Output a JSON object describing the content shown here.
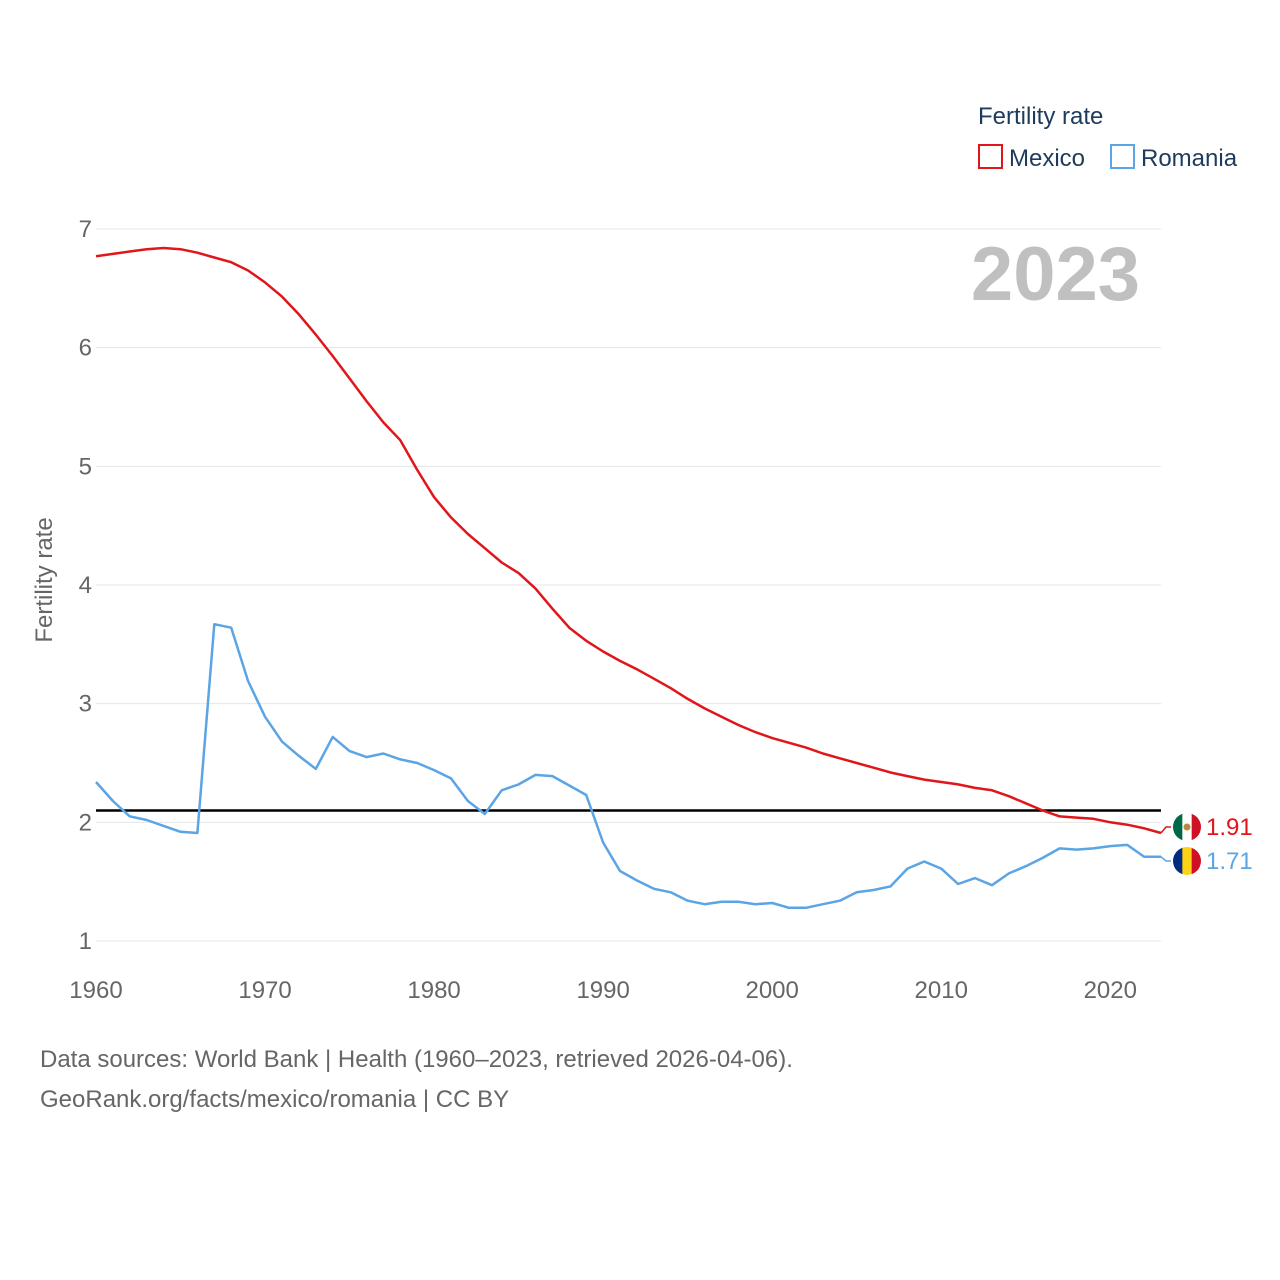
{
  "chart_data": {
    "type": "line",
    "ylabel": "Fertility rate",
    "xlabel": "",
    "year_display": "2023",
    "xlim": [
      1960,
      2023
    ],
    "ylim": [
      1,
      7
    ],
    "yticks": [
      1,
      2,
      3,
      4,
      5,
      6,
      7
    ],
    "xticks": [
      1960,
      1970,
      1980,
      1990,
      2000,
      2010,
      2020
    ],
    "reference_line": 2.1,
    "legend": {
      "title": "Fertility rate",
      "position": "top-right"
    },
    "x": [
      1960,
      1961,
      1962,
      1963,
      1964,
      1965,
      1966,
      1967,
      1968,
      1969,
      1970,
      1971,
      1972,
      1973,
      1974,
      1975,
      1976,
      1977,
      1978,
      1979,
      1980,
      1981,
      1982,
      1983,
      1984,
      1985,
      1986,
      1987,
      1988,
      1989,
      1990,
      1991,
      1992,
      1993,
      1994,
      1995,
      1996,
      1997,
      1998,
      1999,
      2000,
      2001,
      2002,
      2003,
      2004,
      2005,
      2006,
      2007,
      2008,
      2009,
      2010,
      2011,
      2012,
      2013,
      2014,
      2015,
      2016,
      2017,
      2018,
      2019,
      2020,
      2021,
      2022,
      2023
    ],
    "series": [
      {
        "name": "Mexico",
        "color": "#e0161b",
        "end_label": "1.91",
        "flag": "mexico-flag",
        "values": [
          6.77,
          6.79,
          6.81,
          6.83,
          6.84,
          6.83,
          6.8,
          6.76,
          6.72,
          6.65,
          6.55,
          6.43,
          6.28,
          6.11,
          5.93,
          5.74,
          5.55,
          5.37,
          5.22,
          4.97,
          4.74,
          4.57,
          4.43,
          4.31,
          4.19,
          4.1,
          3.97,
          3.8,
          3.64,
          3.53,
          3.44,
          3.36,
          3.29,
          3.21,
          3.13,
          3.04,
          2.96,
          2.89,
          2.82,
          2.76,
          2.71,
          2.67,
          2.63,
          2.58,
          2.54,
          2.5,
          2.46,
          2.42,
          2.39,
          2.36,
          2.34,
          2.32,
          2.29,
          2.27,
          2.22,
          2.16,
          2.1,
          2.05,
          2.04,
          2.03,
          2.0,
          1.98,
          1.95,
          1.91
        ]
      },
      {
        "name": "Romania",
        "color": "#5ba4e5",
        "end_label": "1.71",
        "flag": "romania-flag",
        "values": [
          2.34,
          2.18,
          2.05,
          2.02,
          1.97,
          1.92,
          1.91,
          3.67,
          3.64,
          3.19,
          2.89,
          2.68,
          2.56,
          2.45,
          2.72,
          2.6,
          2.55,
          2.58,
          2.53,
          2.5,
          2.44,
          2.37,
          2.18,
          2.07,
          2.27,
          2.32,
          2.4,
          2.39,
          2.31,
          2.23,
          1.83,
          1.59,
          1.51,
          1.44,
          1.41,
          1.34,
          1.31,
          1.33,
          1.33,
          1.31,
          1.32,
          1.28,
          1.28,
          1.31,
          1.34,
          1.41,
          1.43,
          1.46,
          1.61,
          1.67,
          1.61,
          1.48,
          1.53,
          1.47,
          1.57,
          1.63,
          1.7,
          1.78,
          1.77,
          1.78,
          1.8,
          1.81,
          1.71,
          1.71
        ]
      }
    ]
  },
  "source": {
    "line1": "Data sources: World Bank | Health (1960–2023, retrieved 2026-04-06).",
    "line2": "GeoRank.org/facts/mexico/romania | CC BY"
  }
}
